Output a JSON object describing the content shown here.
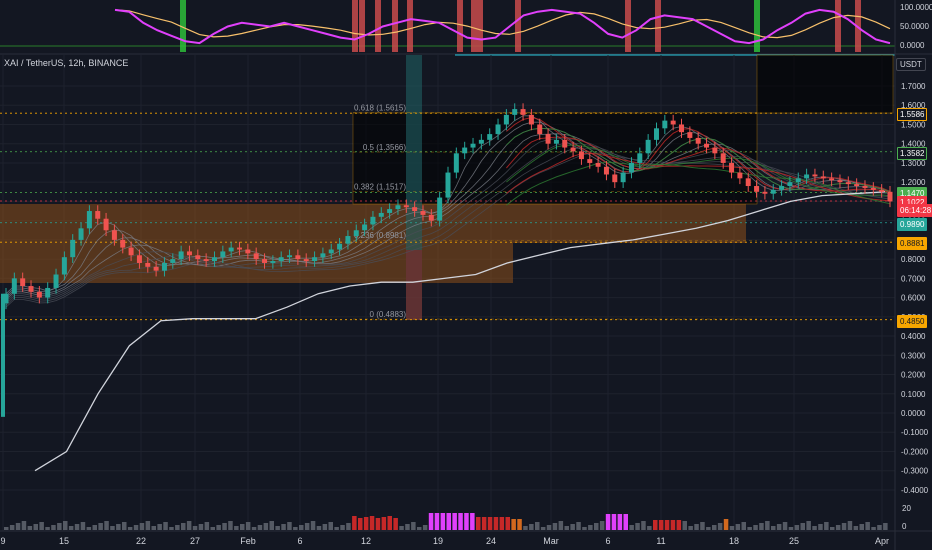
{
  "header": {
    "symbol": "XAI / TetherUS, 12h, BINANCE",
    "currency_button": "USDT"
  },
  "oscillator_axis": {
    "labels": [
      "100.0000",
      "50.0000",
      "0.0000"
    ]
  },
  "price_axis": {
    "labels": [
      "1.7000",
      "1.6000",
      "1.5000",
      "1.4000",
      "1.3000",
      "1.2000",
      "1.1000",
      "1.0000",
      "0.9000",
      "0.8000",
      "0.7000",
      "0.6000",
      "0.5000",
      "0.4000",
      "0.3000",
      "0.2000",
      "0.1000",
      "0.0000",
      "-0.1000",
      "-0.2000",
      "-0.3000",
      "-0.4000"
    ],
    "values": [
      1.7,
      1.6,
      1.5,
      1.4,
      1.3,
      1.2,
      1.1,
      1.0,
      0.9,
      0.8,
      0.7,
      0.6,
      0.5,
      0.4,
      0.3,
      0.2,
      0.1,
      0.0,
      -0.1,
      -0.2,
      -0.3,
      -0.4
    ]
  },
  "volume_axis": {
    "labels": [
      "20",
      "0"
    ]
  },
  "price_tags": [
    {
      "text": "1.5586",
      "color": "#f7a600",
      "bg": "#131722",
      "fg": "#ffffff",
      "value": 1.5586
    },
    {
      "text": "1.3582",
      "color": "#4caf50",
      "bg": "#131722",
      "fg": "#ffffff",
      "value": 1.3582
    },
    {
      "text": "1.1470",
      "color": "#4caf50",
      "bg": "#4caf50",
      "fg": "#ffffff",
      "value": 1.147
    },
    {
      "text": "1.1022",
      "color": "#f23645",
      "bg": "#f23645",
      "fg": "#ffffff",
      "value": 1.1022
    },
    {
      "text": "06:14:28",
      "color": "#f23645",
      "bg": "#f23645",
      "fg": "#ffffff",
      "value": 1.06
    },
    {
      "text": "0.9890",
      "color": "#26a69a",
      "bg": "#26a69a",
      "fg": "#ffffff",
      "value": 0.989
    },
    {
      "text": "0.8881",
      "color": "#f7a600",
      "bg": "#f7a600",
      "fg": "#131722",
      "value": 0.8881
    },
    {
      "text": "0.4850",
      "color": "#f7a600",
      "bg": "#f7a600",
      "fg": "#131722",
      "value": 0.485
    }
  ],
  "fib_levels": [
    {
      "label": "0.618 (1.5615)",
      "value": 1.5615
    },
    {
      "label": "0.5 (1.3566)",
      "value": 1.3566
    },
    {
      "label": "0.382 (1.1517)",
      "value": 1.1517
    },
    {
      "label": "0.236 (0.8981)",
      "value": 0.8981
    },
    {
      "label": "0 (0.4883)",
      "value": 0.4883
    }
  ],
  "x_axis": {
    "labels": [
      "9",
      "15",
      "22",
      "27",
      "Feb",
      "6",
      "12",
      "19",
      "24",
      "Mar",
      "6",
      "11",
      "18",
      "25",
      "Apr"
    ]
  },
  "colors": {
    "background": "#131722",
    "up": "#26a69a",
    "down": "#ef5350",
    "grid": "#1e222d",
    "orange": "#f7a600",
    "oscillator_main": "#e040fb",
    "oscillator_signal": "#f7c06b"
  },
  "chart_data": {
    "type": "candlestick",
    "title": "XAI / TetherUS, 12h, BINANCE",
    "xlabel": "",
    "ylabel": "",
    "ylim": [
      -0.45,
      1.8
    ],
    "x_ticks": [
      "9",
      "15",
      "22",
      "27",
      "Feb",
      "6",
      "12",
      "19",
      "24",
      "Mar",
      "6",
      "11",
      "18",
      "25",
      "Apr"
    ],
    "series": [
      {
        "values": [
          0.62,
          0.7,
          0.66,
          0.63,
          0.6,
          0.65,
          0.72,
          0.81,
          0.9,
          0.96,
          1.05,
          1.01,
          0.95,
          0.9,
          0.86,
          0.82,
          0.78,
          0.76,
          0.74,
          0.78,
          0.8,
          0.84,
          0.82,
          0.8,
          0.79,
          0.81,
          0.84,
          0.86,
          0.85,
          0.83,
          0.8,
          0.78,
          0.79,
          0.81,
          0.82,
          0.8,
          0.79,
          0.81,
          0.83,
          0.85,
          0.88,
          0.92,
          0.95,
          0.98,
          1.02,
          1.04,
          1.06,
          1.08,
          1.07,
          1.05,
          1.03,
          1.0,
          1.12,
          1.25,
          1.35,
          1.38,
          1.4,
          1.42,
          1.45,
          1.5,
          1.55,
          1.58,
          1.55,
          1.5,
          1.45,
          1.4,
          1.42,
          1.38,
          1.36,
          1.32,
          1.3,
          1.28,
          1.24,
          1.2,
          1.25,
          1.3,
          1.35,
          1.42,
          1.48,
          1.52,
          1.5,
          1.46,
          1.43,
          1.4,
          1.38,
          1.35,
          1.3,
          1.25,
          1.22,
          1.18,
          1.15,
          1.14,
          1.16,
          1.18,
          1.2,
          1.22,
          1.24,
          1.23,
          1.22,
          1.21,
          1.2,
          1.19,
          1.18,
          1.17,
          1.16,
          1.15,
          1.1
        ]
      }
    ]
  }
}
